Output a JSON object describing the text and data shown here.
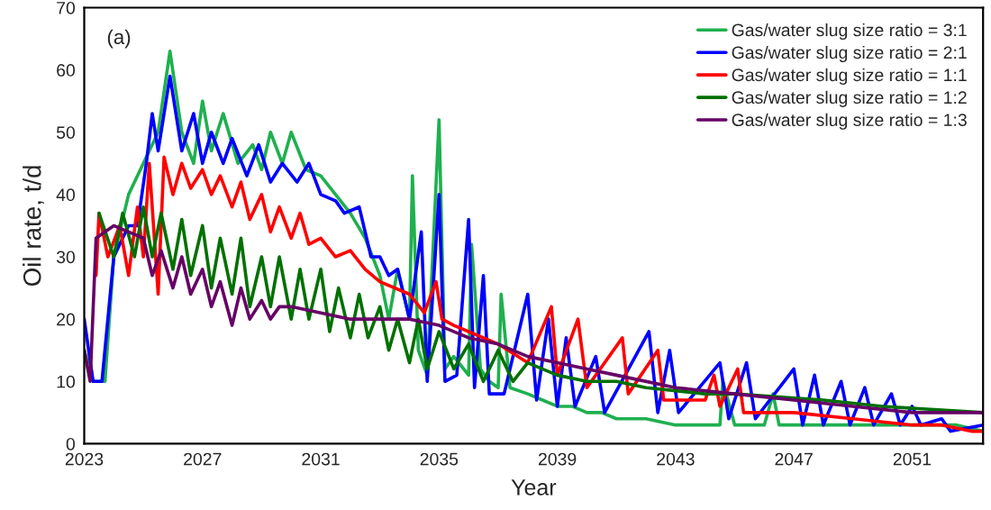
{
  "chart_data": {
    "type": "line",
    "xlabel": "Year",
    "ylabel": "Oil rate, t/d",
    "annotations": [
      "(a)"
    ],
    "xlim": [
      2023,
      2053.4
    ],
    "xticks": [
      2023,
      2027,
      2031,
      2035,
      2039,
      2043,
      2047,
      2051
    ],
    "ylim": [
      0,
      70
    ],
    "yticks": [
      0,
      10,
      20,
      30,
      40,
      50,
      60,
      70
    ],
    "grid": false,
    "legend": "top right",
    "marker": "none",
    "line_style": "solid",
    "series": [
      {
        "name": "Gas/water slug size ratio = 3:1",
        "color": "#1fb04f",
        "x": [
          2023,
          2023.3,
          2023.7,
          2024.0,
          2024.5,
          2025.0,
          2025.5,
          2025.9,
          2026.3,
          2026.7,
          2027.0,
          2027.3,
          2027.7,
          2028.2,
          2028.7,
          2029.0,
          2029.3,
          2029.7,
          2030.0,
          2030.5,
          2031.0,
          2031.5,
          2032.0,
          2032.5,
          2033.0,
          2033.3,
          2033.6,
          2034.0,
          2034.1,
          2034.3,
          2034.6,
          2035.0,
          2035.2,
          2035.5,
          2036.0,
          2036.1,
          2036.4,
          2036.7,
          2037.0,
          2037.1,
          2037.4,
          2038.0,
          2038.5,
          2039.0,
          2039.5,
          2040.0,
          2040.5,
          2041.0,
          2041.5,
          2042.0,
          2043.0,
          2044.0,
          2044.5,
          2044.6,
          2045.0,
          2045.5,
          2046.0,
          2046.3,
          2046.5,
          2047.0,
          2048.0,
          2049.0,
          2050.0,
          2051.0,
          2052.0,
          2052.5,
          2053.4
        ],
        "values": [
          15,
          10,
          10,
          30,
          40,
          45,
          50,
          63,
          50,
          45,
          55,
          47,
          53,
          45,
          48,
          44,
          50,
          45,
          50,
          44,
          43,
          40,
          37,
          33,
          27,
          20,
          28,
          20,
          43,
          15,
          11,
          52,
          12,
          14,
          11,
          32,
          12,
          10,
          9,
          24,
          9,
          8,
          7,
          6,
          6,
          5,
          5,
          4,
          4,
          4,
          3,
          3,
          3,
          10,
          3,
          3,
          3,
          8,
          3,
          3,
          3,
          3,
          3,
          3,
          3,
          3,
          2
        ]
      },
      {
        "name": "Gas/water slug size ratio = 2:1",
        "color": "#0000ff",
        "x": [
          2023,
          2023.3,
          2023.6,
          2024.0,
          2024.5,
          2024.8,
          2025.1,
          2025.3,
          2025.5,
          2025.9,
          2026.3,
          2026.7,
          2027.0,
          2027.3,
          2027.7,
          2028.0,
          2028.5,
          2028.9,
          2029.3,
          2029.7,
          2030.2,
          2030.6,
          2031.0,
          2031.5,
          2031.8,
          2032.3,
          2032.7,
          2033.0,
          2033.3,
          2033.6,
          2034.0,
          2034.4,
          2034.6,
          2035.0,
          2035.2,
          2035.6,
          2036.0,
          2036.2,
          2036.5,
          2036.7,
          2037.2,
          2038.0,
          2038.3,
          2038.7,
          2039.0,
          2039.3,
          2039.6,
          2040.3,
          2040.6,
          2042.1,
          2042.4,
          2042.8,
          2043.1,
          2044.5,
          2044.8,
          2045.4,
          2045.7,
          2047.0,
          2047.3,
          2047.7,
          2048.0,
          2048.6,
          2048.9,
          2049.4,
          2049.7,
          2050.3,
          2050.6,
          2051.0,
          2051.3,
          2052.0,
          2052.3,
          2053.4
        ],
        "values": [
          20,
          10,
          10,
          30,
          35,
          35,
          45,
          53,
          47,
          59,
          47,
          53,
          45,
          50,
          45,
          49,
          43,
          48,
          42,
          45,
          42,
          45,
          40,
          39,
          37,
          38,
          30,
          30,
          27,
          28,
          20,
          34,
          10,
          40,
          10,
          11,
          36,
          9,
          27,
          8,
          8,
          24,
          7,
          20,
          6,
          17,
          6,
          14,
          5,
          18,
          5,
          15,
          5,
          13,
          4,
          13,
          4,
          12,
          3,
          11,
          3,
          10,
          3,
          9,
          3,
          8,
          3,
          6,
          3,
          4,
          2,
          3
        ]
      },
      {
        "name": "Gas/water slug size ratio = 1:1",
        "color": "#ff0000",
        "x": [
          2023.4,
          2023.5,
          2023.8,
          2024.2,
          2024.5,
          2024.8,
          2025.0,
          2025.2,
          2025.5,
          2025.7,
          2026.0,
          2026.3,
          2026.6,
          2027.0,
          2027.3,
          2027.6,
          2028.0,
          2028.3,
          2028.6,
          2029.0,
          2029.3,
          2029.6,
          2030.0,
          2030.3,
          2030.6,
          2031.0,
          2031.5,
          2032.0,
          2032.5,
          2033.0,
          2034.0,
          2034.5,
          2034.9,
          2035.1,
          2035.5,
          2036.0,
          2037.0,
          2038.0,
          2038.8,
          2039.0,
          2039.7,
          2040.0,
          2041.2,
          2041.4,
          2042.4,
          2042.6,
          2044.0,
          2044.3,
          2044.5,
          2045.1,
          2045.3,
          2047.0,
          2049.0,
          2051.0,
          2052.0,
          2053.0,
          2053.4
        ],
        "values": [
          27,
          37,
          30,
          35,
          27,
          38,
          30,
          45,
          24,
          46,
          40,
          45,
          41,
          44,
          40,
          43,
          38,
          42,
          36,
          40,
          34,
          38,
          33,
          37,
          32,
          33,
          30,
          31,
          28,
          26,
          24,
          21,
          26,
          20,
          19,
          18,
          16,
          13,
          22,
          11,
          20,
          9,
          17,
          8,
          15,
          7,
          7,
          11,
          6,
          12,
          5,
          5,
          4,
          3,
          3,
          2,
          2
        ]
      },
      {
        "name": "Gas/water slug size ratio = 1:2",
        "color": "#007000",
        "x": [
          2023.5,
          2024.0,
          2024.3,
          2024.7,
          2025.0,
          2025.3,
          2025.6,
          2026.0,
          2026.3,
          2026.6,
          2027.0,
          2027.3,
          2027.6,
          2028.0,
          2028.3,
          2028.6,
          2029.0,
          2029.3,
          2029.6,
          2030.0,
          2030.3,
          2030.6,
          2031.0,
          2031.3,
          2031.6,
          2032.0,
          2032.3,
          2032.6,
          2033.0,
          2033.3,
          2033.6,
          2034.0,
          2034.3,
          2034.6,
          2035.0,
          2035.5,
          2036.0,
          2036.5,
          2037.0,
          2037.5,
          2038.0,
          2039.0,
          2040.0,
          2041.0,
          2042.0,
          2044.0,
          2045.0,
          2048.0,
          2050.0,
          2053.4
        ],
        "values": [
          37,
          30,
          37,
          30,
          38,
          30,
          37,
          28,
          36,
          27,
          35,
          25,
          33,
          24,
          33,
          22,
          30,
          22,
          30,
          20,
          28,
          20,
          28,
          18,
          25,
          17,
          24,
          17,
          22,
          15,
          20,
          13,
          20,
          12,
          18,
          12,
          16,
          10,
          15,
          10,
          13,
          11,
          10,
          10,
          9,
          8,
          8,
          7,
          6,
          5
        ]
      },
      {
        "name": "Gas/water slug size ratio = 1:3",
        "color": "#660066",
        "x": [
          2023,
          2023.2,
          2023.4,
          2024.0,
          2024.5,
          2025.0,
          2025.3,
          2025.6,
          2026.0,
          2026.3,
          2026.6,
          2027.0,
          2027.3,
          2027.6,
          2028.0,
          2028.3,
          2028.6,
          2029.0,
          2029.3,
          2029.6,
          2030.0,
          2031.0,
          2032.0,
          2033.0,
          2034.0,
          2035.0,
          2036.0,
          2037.0,
          2038.0,
          2039.0,
          2040.0,
          2041.0,
          2043.0,
          2045.0,
          2047.0,
          2049.0,
          2051.0,
          2053.4
        ],
        "values": [
          15,
          10,
          33,
          35,
          34,
          33,
          27,
          31,
          25,
          30,
          24,
          28,
          22,
          26,
          19,
          25,
          20,
          23,
          20,
          22,
          22,
          21,
          20,
          20,
          20,
          19,
          17,
          16,
          14,
          13,
          12,
          11,
          9,
          8,
          7,
          6,
          5,
          5
        ]
      }
    ]
  }
}
